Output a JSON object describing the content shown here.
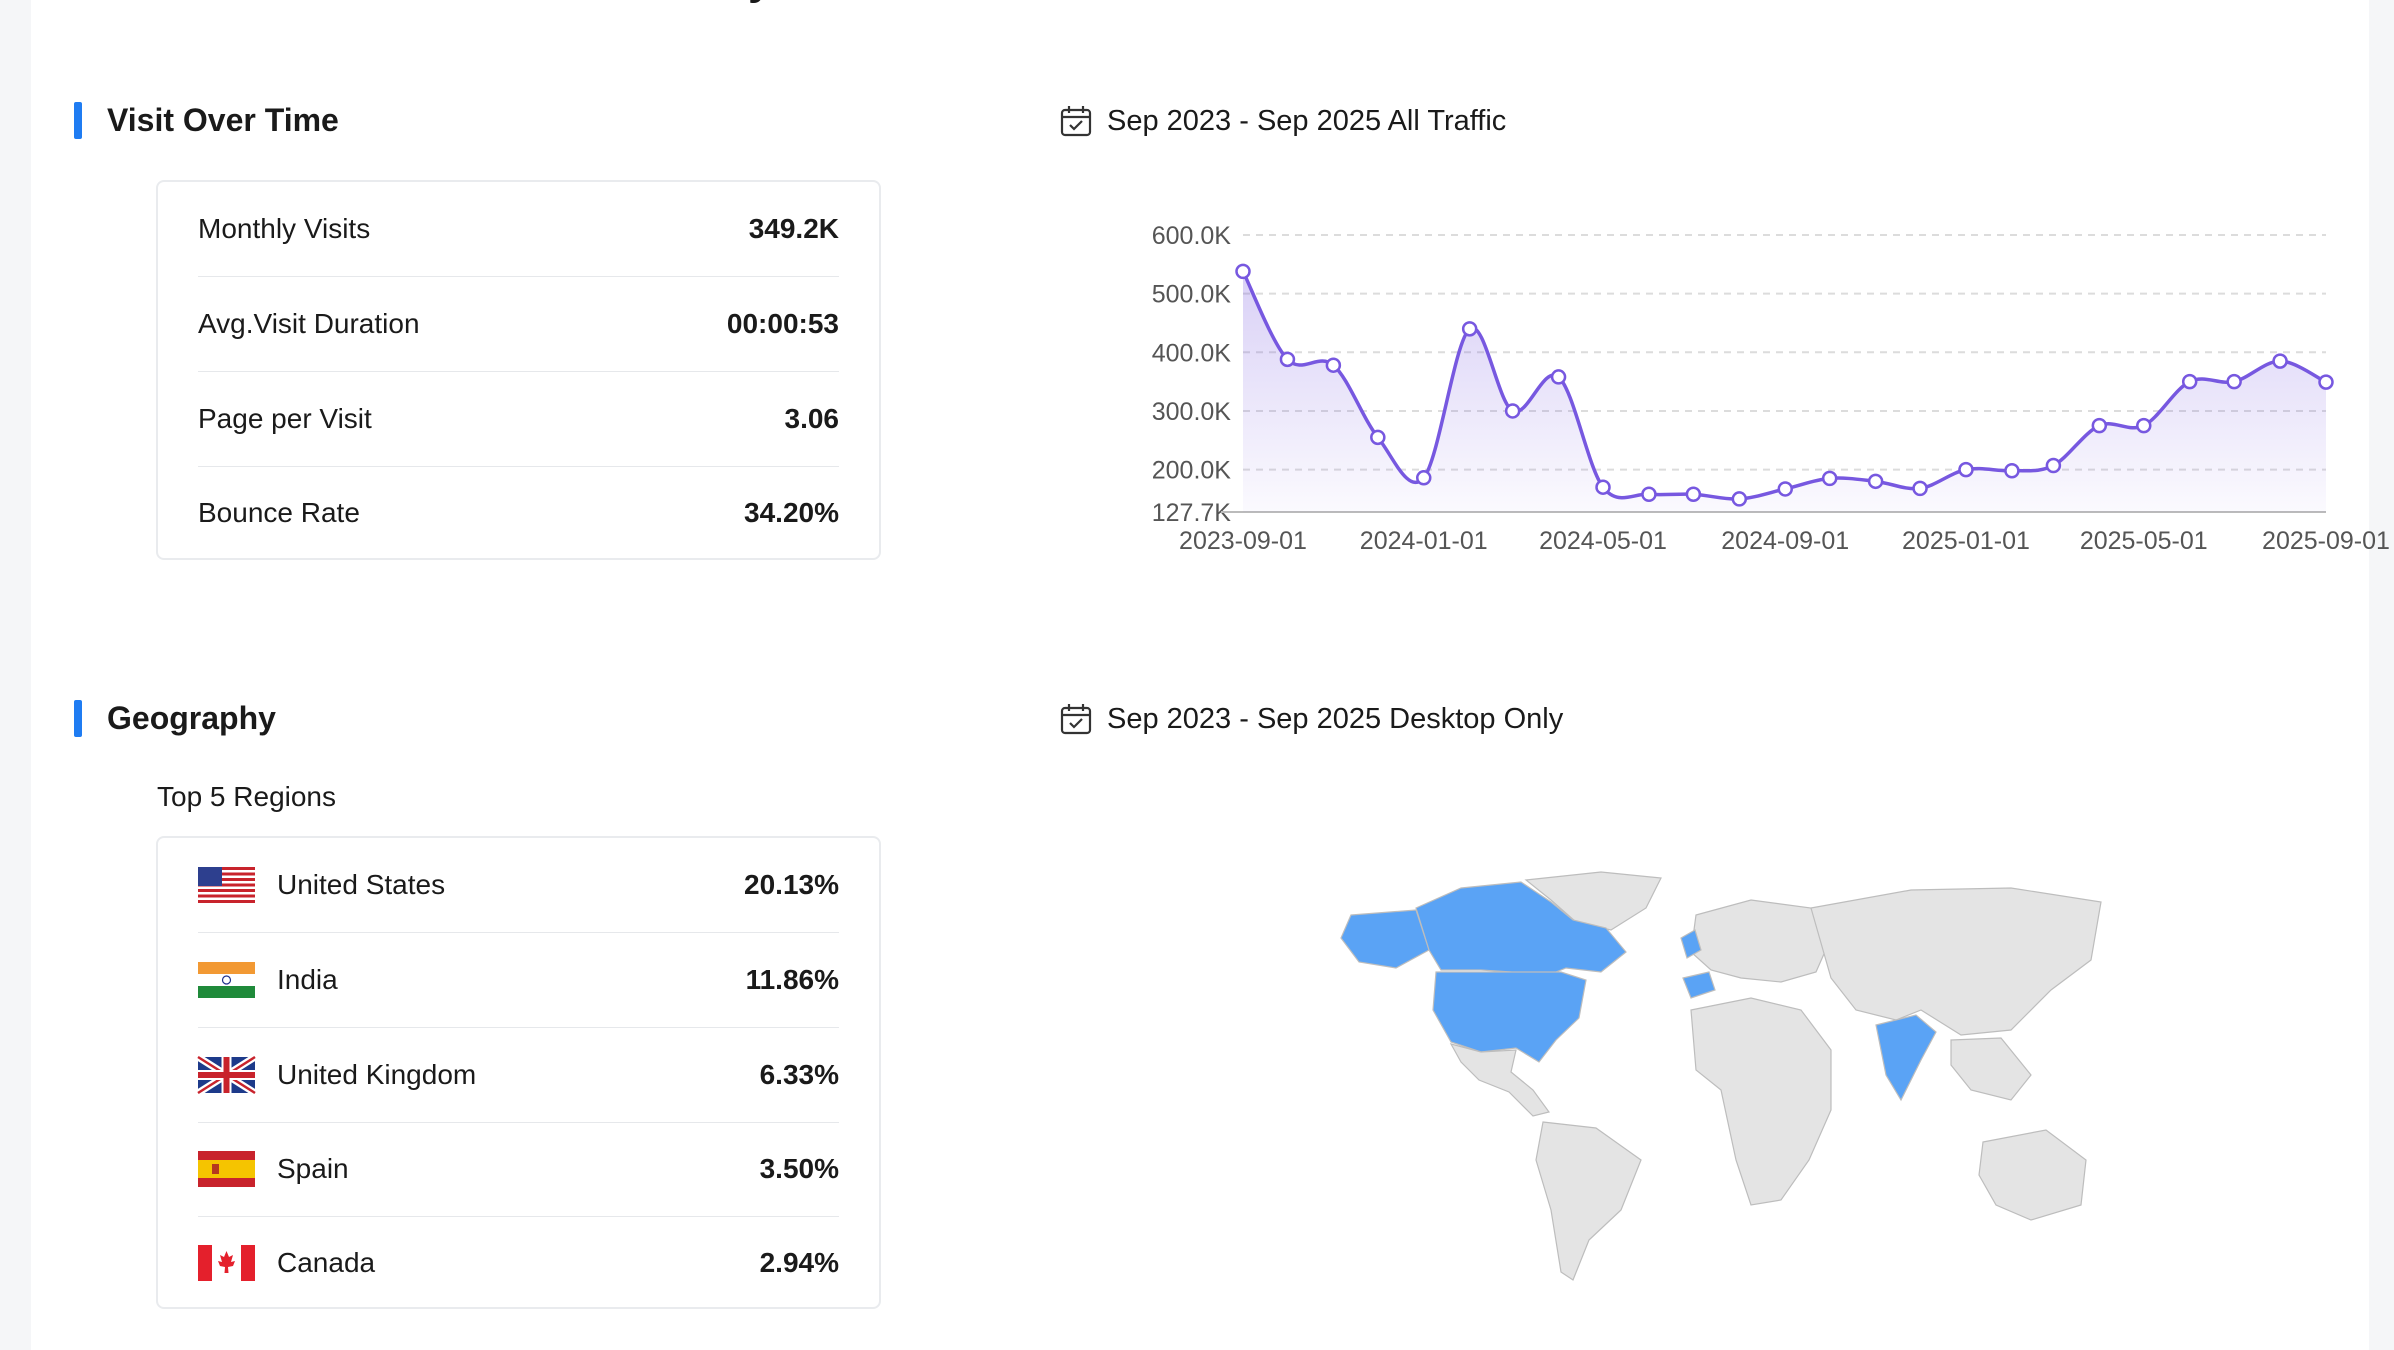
{
  "visits": {
    "title": "Visit Over Time",
    "date_range": "Sep 2023 - Sep 2025 All Traffic",
    "metrics": [
      {
        "label": "Monthly Visits",
        "value": "349.2K"
      },
      {
        "label": "Avg.Visit Duration",
        "value": "00:00:53"
      },
      {
        "label": "Page per Visit",
        "value": "3.06"
      },
      {
        "label": "Bounce Rate",
        "value": "34.20%"
      }
    ]
  },
  "geography": {
    "title": "Geography",
    "date_range": "Sep 2023 - Sep 2025 Desktop Only",
    "subtitle": "Top 5 Regions",
    "regions": [
      {
        "country": "United States",
        "share": "20.13%",
        "flag": "us-flag-icon"
      },
      {
        "country": "India",
        "share": "11.86%",
        "flag": "india-flag-icon"
      },
      {
        "country": "United Kingdom",
        "share": "6.33%",
        "flag": "uk-flag-icon"
      },
      {
        "country": "Spain",
        "share": "3.50%",
        "flag": "spain-flag-icon"
      },
      {
        "country": "Canada",
        "share": "2.94%",
        "flag": "canada-flag-icon"
      }
    ],
    "map_colors": {
      "highlight": "#5aa3f5",
      "base": "#e4e4e4"
    }
  },
  "colors": {
    "accent": "#1f7cf2",
    "line": "#7758e0"
  },
  "chart_data": {
    "type": "line",
    "x": [
      "2023-09-01",
      "2023-10-01",
      "2023-11-01",
      "2023-12-01",
      "2024-01-01",
      "2024-02-01",
      "2024-03-01",
      "2024-04-01",
      "2024-05-01",
      "2024-06-01",
      "2024-07-01",
      "2024-08-01",
      "2024-09-01",
      "2024-10-01",
      "2024-11-01",
      "2024-12-01",
      "2025-01-01",
      "2025-02-01",
      "2025-03-01",
      "2025-04-01",
      "2025-05-01",
      "2025-06-01",
      "2025-07-01",
      "2025-08-01",
      "2025-09-01"
    ],
    "y": [
      538000,
      388000,
      378000,
      255000,
      186000,
      440000,
      300000,
      358000,
      170000,
      158000,
      158000,
      150000,
      167000,
      185000,
      180000,
      168000,
      200000,
      198000,
      207000,
      275000,
      275000,
      350000,
      350000,
      385000,
      349200
    ],
    "x_tick_labels": [
      "2023-09-01",
      "2024-01-01",
      "2024-05-01",
      "2024-09-01",
      "2025-01-01",
      "2025-05-01",
      "2025-09-01"
    ],
    "y_tick_labels": [
      "127.7K",
      "200.0K",
      "300.0K",
      "400.0K",
      "500.0K",
      "600.0K"
    ],
    "y_ticks": [
      127700,
      200000,
      300000,
      400000,
      500000,
      600000
    ],
    "ylim": [
      127700,
      600000
    ],
    "grid": true,
    "area_fill": true
  }
}
